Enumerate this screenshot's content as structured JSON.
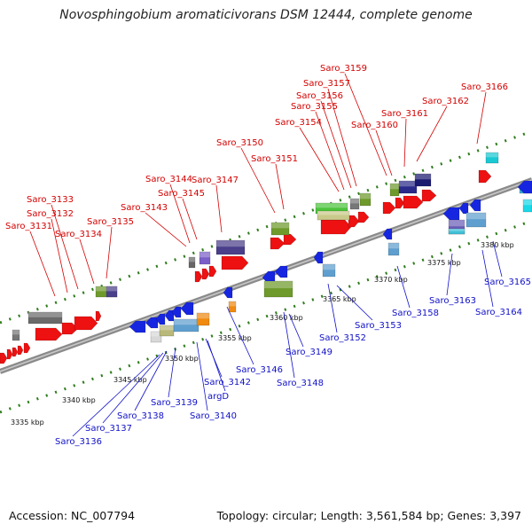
{
  "title": "Novosphingobium aromaticivorans DSM 12444, complete genome",
  "footer": {
    "accession": "Accession: NC_007794",
    "stats": "Topology: circular; Length: 3,561,584 bp; Genes: 3,397"
  },
  "colors": {
    "forward_label": "#d40000",
    "reverse_label": "#1010c8",
    "backbone": "#8a8a8a",
    "tick": "#2f7d1c"
  },
  "scale_ticks": [
    "3335 kbp",
    "3340 kbp",
    "3345 kbp",
    "3350 kbp",
    "3355 kbp",
    "3360 kbp",
    "3365 kbp",
    "3370 kbp",
    "3375 kbp",
    "3380 kbp"
  ],
  "forward_genes": [
    "Saro_3131",
    "Saro_3132",
    "Saro_3133",
    "Saro_3134",
    "Saro_3135",
    "Saro_3143",
    "Saro_3144",
    "Saro_3145",
    "Saro_3147",
    "Saro_3150",
    "Saro_3151",
    "Saro_3154",
    "Saro_3155",
    "Saro_3156",
    "Saro_3157",
    "Saro_3159",
    "Saro_3160",
    "Saro_3161",
    "Saro_3162",
    "Saro_3166"
  ],
  "reverse_genes": [
    "Saro_3136",
    "Saro_3137",
    "Saro_3138",
    "Saro_3139",
    "Saro_3140",
    "argD",
    "Saro_3142",
    "Saro_3146",
    "Saro_3148",
    "Saro_3149",
    "Saro_3152",
    "Saro_3153",
    "Saro_3158",
    "Saro_3163",
    "Saro_3164",
    "Saro_3165"
  ]
}
